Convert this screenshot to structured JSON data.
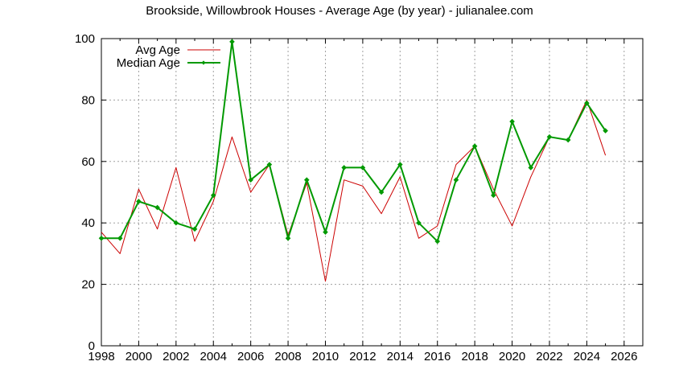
{
  "chart_data": {
    "type": "line",
    "title": "Brookside, Willowbrook Houses - Average Age (by year) - julianalee.com",
    "xlabel": "",
    "ylabel": "",
    "xlim": [
      1998,
      2027
    ],
    "ylim": [
      0,
      100
    ],
    "x_ticks": [
      1998,
      2000,
      2002,
      2004,
      2006,
      2008,
      2010,
      2012,
      2014,
      2016,
      2018,
      2020,
      2022,
      2024,
      2026
    ],
    "y_ticks": [
      0,
      20,
      40,
      60,
      80,
      100
    ],
    "grid": true,
    "legend_position": "top-left",
    "series": [
      {
        "name": "Avg Age",
        "color": "#cc0000",
        "marker": "none",
        "x": [
          1998,
          1999,
          2000,
          2001,
          2002,
          2003,
          2004,
          2005,
          2006,
          2007,
          2008,
          2009,
          2010,
          2011,
          2012,
          2013,
          2014,
          2015,
          2016,
          2017,
          2018,
          2019,
          2020,
          2021,
          2022,
          2023,
          2024,
          2025
        ],
        "values": [
          37,
          30,
          51,
          38,
          58,
          34,
          47,
          68,
          50,
          59,
          36,
          53,
          21,
          54,
          52,
          43,
          55,
          35,
          39,
          59,
          65,
          51,
          39,
          55,
          68,
          67,
          80,
          62
        ]
      },
      {
        "name": "Median Age",
        "color": "#009900",
        "marker": "diamond",
        "x": [
          1998,
          1999,
          2000,
          2001,
          2002,
          2003,
          2004,
          2005,
          2006,
          2007,
          2008,
          2009,
          2010,
          2011,
          2012,
          2013,
          2014,
          2015,
          2016,
          2017,
          2018,
          2019,
          2020,
          2021,
          2022,
          2023,
          2024,
          2025
        ],
        "values": [
          35,
          35,
          47,
          45,
          40,
          38,
          49,
          99,
          54,
          59,
          35,
          54,
          37,
          58,
          58,
          50,
          59,
          40,
          34,
          54,
          65,
          49,
          73,
          58,
          68,
          67,
          79,
          70
        ]
      }
    ]
  }
}
